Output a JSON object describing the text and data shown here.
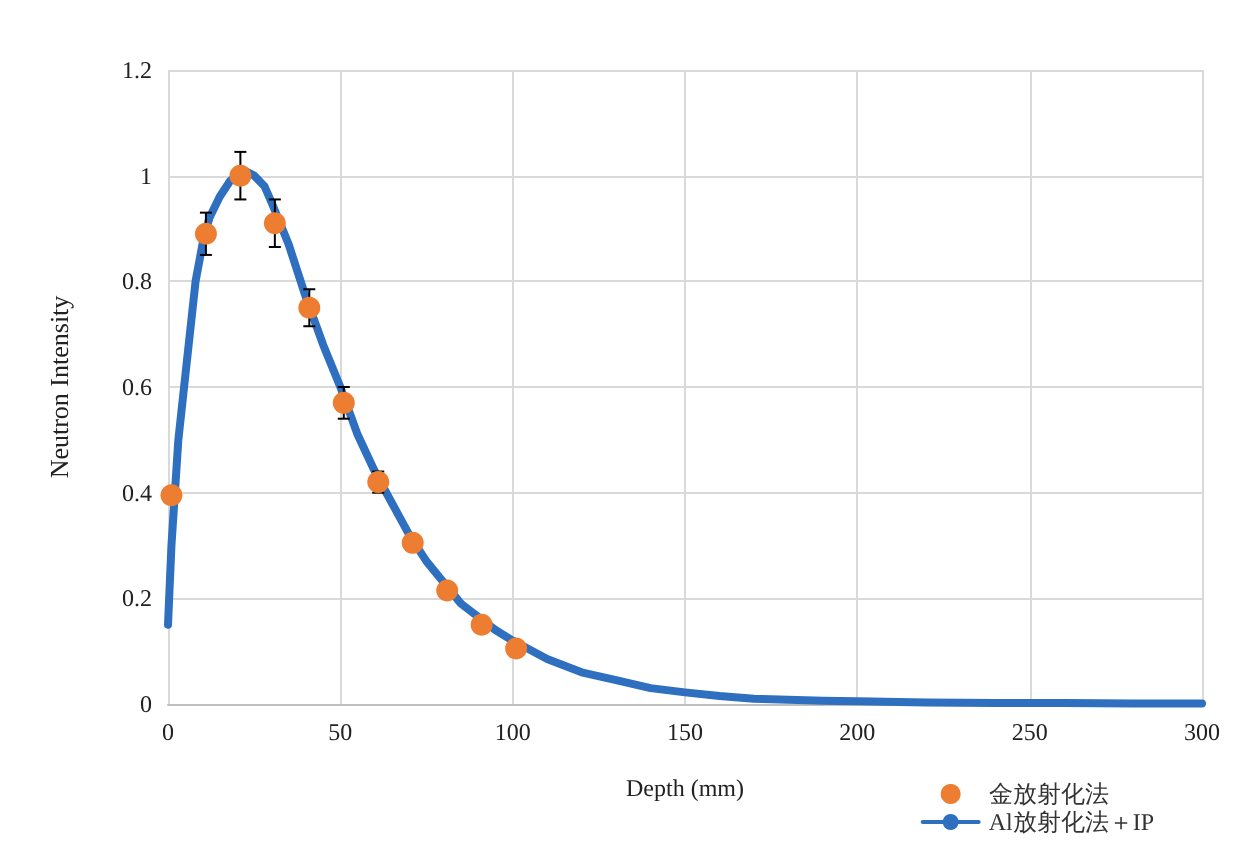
{
  "chart_data": {
    "type": "scatter",
    "xlabel": "Depth (mm)",
    "ylabel": "Neutron Intensity",
    "xlim": [
      0,
      300
    ],
    "xticks": [
      0,
      50,
      100,
      150,
      200,
      250,
      300
    ],
    "ylim": [
      0,
      1.2
    ],
    "yticks": [
      0,
      0.2,
      0.4,
      0.6,
      0.8,
      1,
      1.2
    ],
    "grid": true,
    "legend": "bottom right",
    "series": [
      {
        "name": "金放射化法",
        "marker": "circle",
        "color": "#ed7d31",
        "x": [
          1,
          11,
          21,
          31,
          41,
          51,
          61,
          71,
          81,
          91,
          101
        ],
        "values": [
          0.395,
          0.89,
          1.0,
          0.91,
          0.75,
          0.57,
          0.42,
          0.305,
          0.215,
          0.15,
          0.105
        ],
        "errors": [
          null,
          0.04,
          0.045,
          0.045,
          0.035,
          0.03,
          0.02,
          null,
          null,
          null,
          null
        ]
      },
      {
        "name": "Al放射化法＋IP",
        "type": "line",
        "marker": "circle",
        "line_style": "solid",
        "color": "#2e6fc0",
        "x": [
          0,
          1,
          2,
          3,
          5,
          8,
          10,
          12,
          15,
          18,
          20,
          22,
          25,
          28,
          30,
          35,
          40,
          45,
          50,
          55,
          60,
          65,
          70,
          75,
          80,
          85,
          90,
          95,
          100,
          110,
          120,
          130,
          140,
          150,
          160,
          170,
          180,
          190,
          200,
          220,
          240,
          260,
          280,
          300
        ],
        "values": [
          0.15,
          0.3,
          0.4,
          0.5,
          0.62,
          0.8,
          0.87,
          0.92,
          0.96,
          0.99,
          1.0,
          1.01,
          1.0,
          0.98,
          0.95,
          0.87,
          0.77,
          0.68,
          0.6,
          0.51,
          0.44,
          0.38,
          0.32,
          0.27,
          0.23,
          0.19,
          0.165,
          0.14,
          0.12,
          0.085,
          0.06,
          0.045,
          0.03,
          0.022,
          0.015,
          0.01,
          0.008,
          0.006,
          0.005,
          0.003,
          0.002,
          0.002,
          0.001,
          0.001
        ]
      }
    ]
  }
}
